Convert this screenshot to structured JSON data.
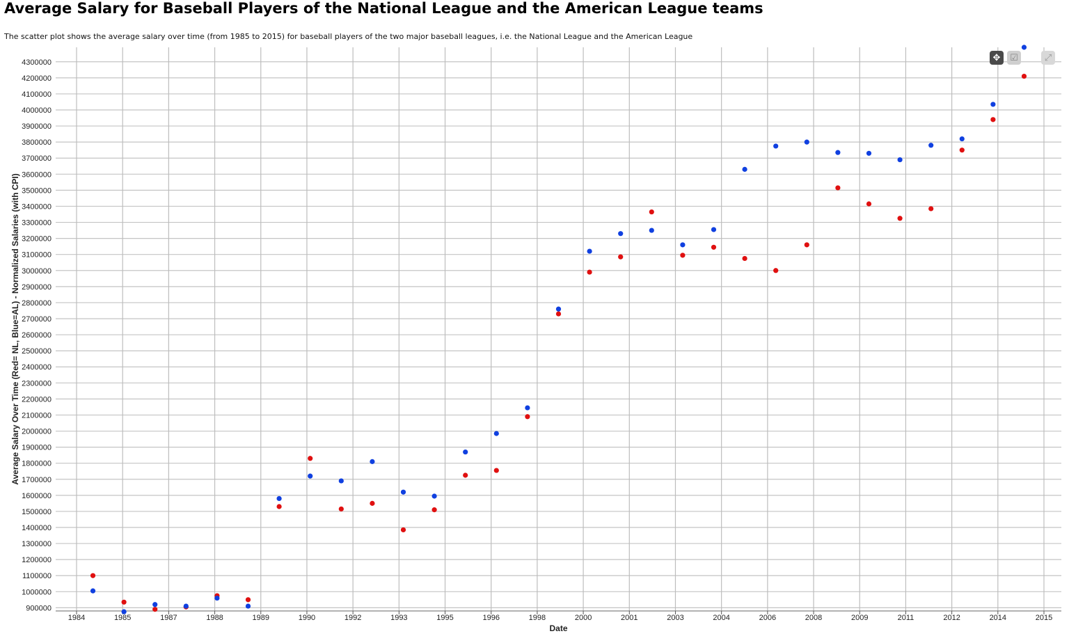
{
  "title": "Average Salary for Baseball Players of the National League and the American League teams",
  "subtitle": "The scatter plot shows the average salary over time (from 1985 to 2015) for baseball players of the two major baseball leagues, i.e. the National League and the American League",
  "toolbar": [
    {
      "name": "move-icon",
      "glyph": "✥"
    },
    {
      "name": "select-icon",
      "glyph": "☑"
    },
    {
      "name": "expand-icon",
      "glyph": "⤢"
    }
  ],
  "chart_data": {
    "type": "scatter",
    "title": "Average Salary for Baseball Players of the National League and the American League teams",
    "xlabel": "Date",
    "ylabel": "Average Salary Over Time (Red= NL, Blue=AL) - Normalized Salaries (with CPI)",
    "x_tick_labels": [
      "1984",
      "1985",
      "1987",
      "1988",
      "1989",
      "1990",
      "1992",
      "1993",
      "1995",
      "1996",
      "1998",
      "2000",
      "2001",
      "2003",
      "2004",
      "2006",
      "2008",
      "2009",
      "2011",
      "2012",
      "2014",
      "2015"
    ],
    "xlim": [
      1983.8,
      2016.2
    ],
    "ylim": [
      880000,
      4390000
    ],
    "y_ticks": [
      900000,
      1000000,
      1100000,
      1200000,
      1300000,
      1400000,
      1500000,
      1600000,
      1700000,
      1800000,
      1900000,
      2000000,
      2100000,
      2200000,
      2300000,
      2400000,
      2500000,
      2600000,
      2700000,
      2800000,
      2900000,
      3000000,
      3100000,
      3200000,
      3300000,
      3400000,
      3500000,
      3600000,
      3700000,
      3800000,
      3900000,
      4000000,
      4100000,
      4200000,
      4300000
    ],
    "grid": true,
    "series": [
      {
        "name": "NL",
        "color": "#e01010",
        "x": [
          1985,
          1986,
          1987,
          1988,
          1989,
          1990,
          1991,
          1992,
          1993,
          1994,
          1995,
          1996,
          1997,
          1998,
          1999,
          2000,
          2001,
          2002,
          2003,
          2004,
          2005,
          2006,
          2007,
          2008,
          2009,
          2010,
          2011,
          2012,
          2013,
          2014,
          2015
        ],
        "values": [
          1100000,
          935000,
          890000,
          905000,
          975000,
          950000,
          1530000,
          1830000,
          1515000,
          1550000,
          1385000,
          1510000,
          1725000,
          1755000,
          2090000,
          2730000,
          2990000,
          3085000,
          3365000,
          3095000,
          3145000,
          3075000,
          3000000,
          3160000,
          3515000,
          3415000,
          3325000,
          3385000,
          3750000,
          3940000,
          4210000
        ]
      },
      {
        "name": "AL",
        "color": "#1040e0",
        "x": [
          1985,
          1986,
          1987,
          1988,
          1989,
          1990,
          1991,
          1992,
          1993,
          1994,
          1995,
          1996,
          1997,
          1998,
          1999,
          2000,
          2001,
          2002,
          2003,
          2004,
          2005,
          2006,
          2007,
          2008,
          2009,
          2010,
          2011,
          2012,
          2013,
          2014,
          2015
        ],
        "values": [
          1005000,
          875000,
          920000,
          910000,
          960000,
          910000,
          1580000,
          1720000,
          1690000,
          1810000,
          1620000,
          1595000,
          1870000,
          1985000,
          2145000,
          2760000,
          3120000,
          3230000,
          3250000,
          3160000,
          3255000,
          3630000,
          3775000,
          3800000,
          3735000,
          3730000,
          3690000,
          3780000,
          3820000,
          4035000,
          4390000
        ]
      }
    ]
  }
}
